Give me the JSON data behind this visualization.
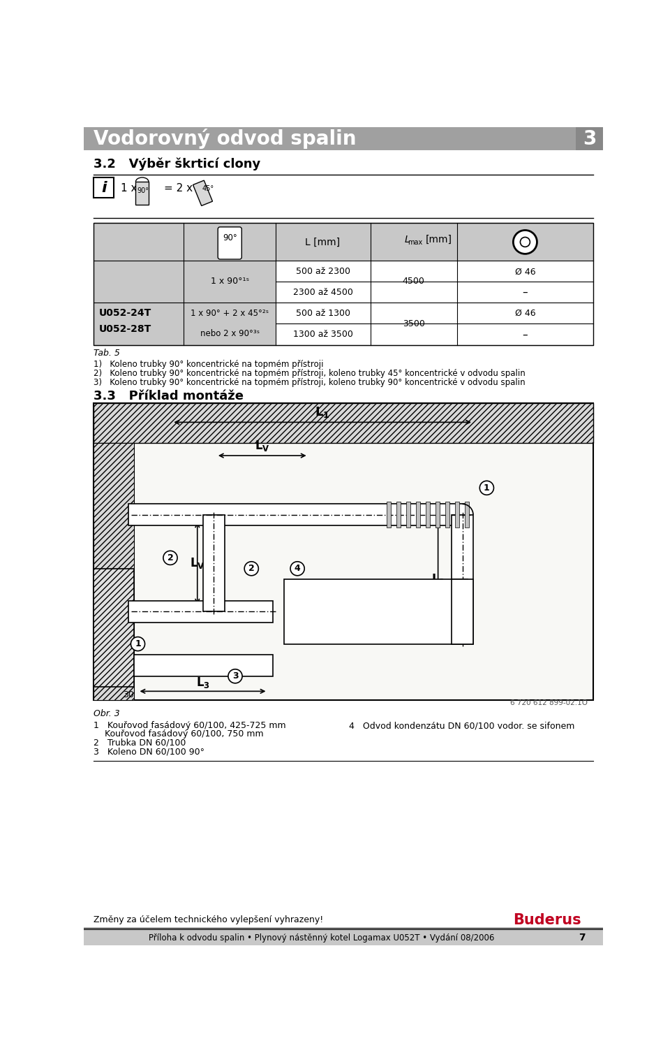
{
  "title": "Vodorovný odvod spalin",
  "page_number": "3",
  "section_title": "3.2   Výběr škrticí clony",
  "col1_label": "U052-24T\nU052-28T",
  "col3_header": "L [mm]",
  "col3_r1a": "500 až 2300",
  "col3_r1b": "2300 až 4500",
  "col4_r1": "4500",
  "col5_r1a": "Ø 46",
  "col5_r1b": "–",
  "col3_r2a": "500 až 1300",
  "col3_r2b": "1300 až 3500",
  "col4_r2": "3500",
  "col5_r2a": "Ø 46",
  "col5_r2b": "–",
  "tab_label": "Tab. 5",
  "footnote1": "1)   Koleno trubky 90° koncentrické na topmém přístroji",
  "footnote2": "2)   Koleno trubky 90° koncentrické na topmém přístroji, koleno trubky 45° koncentrické v odvodu spalin",
  "footnote3": "3)   Koleno trubky 90° koncentrické na topmém přístroji, koleno trubky 90° koncentrické v odvodu spalin",
  "section2_title": "3.3   Příklad montáže",
  "bottom_label1": "Obr. 3",
  "bottom_note1a": "1   Kouřovod fasádový 60/100, 425-725 mm",
  "bottom_note1b": "    Kouřovod fasádový 60/100, 750 mm",
  "bottom_note2": "2   Trubka DN 60/100",
  "bottom_note3": "3   Koleno DN 60/100 90°",
  "bottom_note4": "4   Odvod kondenzátu DN 60/100 vodor. se sifonem",
  "ref_num": "6 720 612 899-02.1O",
  "footer_text": "Změny za účelem technického vylepšení vyhrazeny!",
  "footer_brand": "Buderus",
  "footer_bottom": "Příloha k odvodu spalin • Plynový nástěnný kotel Logamax U052T • Vydání 08/2006",
  "footer_page": "7"
}
